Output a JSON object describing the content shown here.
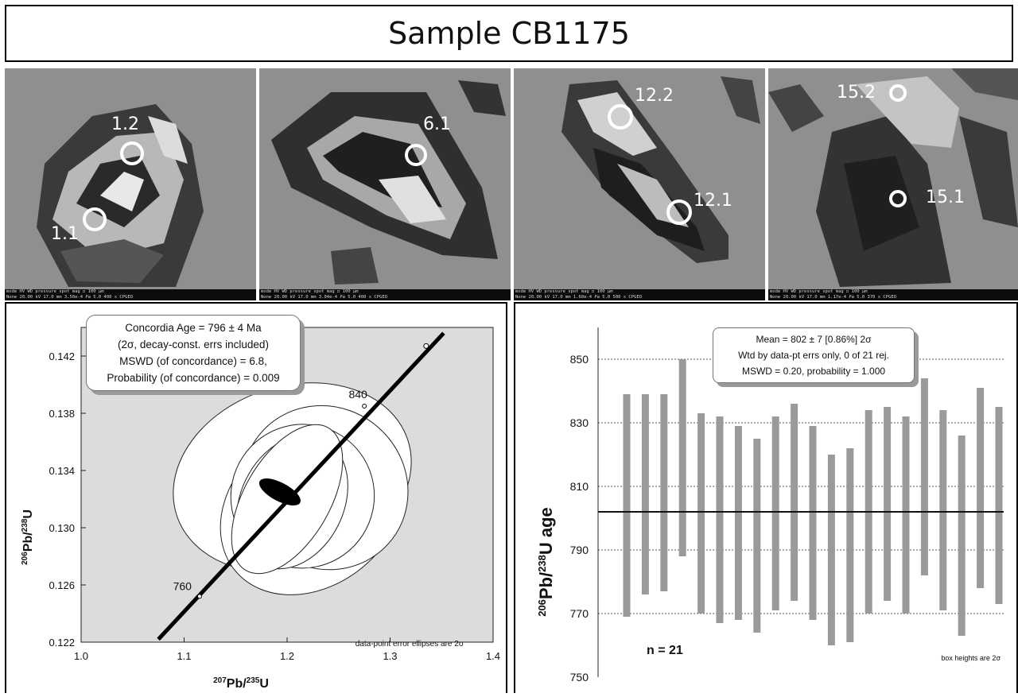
{
  "title": "Sample CB1175",
  "sem_images": [
    {
      "spots": [
        {
          "label": "1.2"
        },
        {
          "label": "1.1"
        }
      ],
      "bar_line1": "mode    HV    WD    pressure  spot mag ◻         100 µm",
      "bar_line2": "None 20.00 kV 17.0 mm 3.50e-4 Pa 5.0   400 x      CPGEO"
    },
    {
      "spots": [
        {
          "label": "6.1"
        }
      ],
      "bar_line1": "mode    HV    WD    pressure  spot mag ◻         100 µm",
      "bar_line2": "None 20.00 kV 17.0 mm 3.04e-4 Pa 5.0   400 x      CPGEO"
    },
    {
      "spots": [
        {
          "label": "12.2"
        },
        {
          "label": "12.1"
        }
      ],
      "bar_line1": "mode    HV    WD    pressure  spot mag ◻         100 µm",
      "bar_line2": "None 20.00 kV 17.0 mm 1.60e-4 Pa 5.0   500 x      CPGEO"
    },
    {
      "spots": [
        {
          "label": "15.2"
        },
        {
          "label": "15.1"
        }
      ],
      "bar_line1": "mode    HV    WD    pressure  spot mag ◻         100 µm",
      "bar_line2": "None 20.00 kV 17.0 mm 1.17e-4 Pa 5.0   370 x      CPGEO"
    }
  ],
  "concordia": {
    "legend": [
      "Concordia Age = 796 ± 4 Ma",
      "(2σ, decay-const. errs included)",
      "MSWD (of concordance) = 6.8,",
      "Probability (of concordance) = 0.009"
    ],
    "footnote": "data-point error ellipses are 2σ",
    "ylabel_pre": "206",
    "ylabel_mid": "Pb/",
    "ylabel_sup2": "238",
    "ylabel_post": "U",
    "xlabel_pre": "207",
    "xlabel_mid": "Pb/",
    "xlabel_sup2": "235",
    "xlabel_post": "U"
  },
  "weighted_mean": {
    "legend": [
      "Mean = 802 ± 7  [0.86%]  2σ",
      "Wtd by data-pt errs only, 0 of 21 rej.",
      "MSWD = 0.20, probability = 1.000"
    ],
    "n_label": "n = 21",
    "footnote": "box heights are 2σ",
    "ylabel_pre": "206",
    "ylabel_mid": "Pb/",
    "ylabel_sup2": "238",
    "ylabel_post": "U age"
  },
  "chart_data": [
    {
      "type": "scatter",
      "subtype": "concordia",
      "xlim": [
        1.0,
        1.4
      ],
      "ylim": [
        0.122,
        0.144
      ],
      "xticks": [
        1.0,
        1.1,
        1.2,
        1.3,
        1.4
      ],
      "yticks": [
        0.122,
        0.126,
        0.13,
        0.134,
        0.138,
        0.142
      ],
      "ytick_labels": [
        "0.122",
        "0.126",
        "0.130",
        "0.134",
        "0.138",
        "0.142"
      ],
      "xtick_labels": [
        "1.0",
        "1.1",
        "1.2",
        "1.3",
        "1.4"
      ],
      "concordia_curve": [
        [
          1.075,
          0.1222
        ],
        [
          1.352,
          0.1436
        ]
      ],
      "age_markers": [
        {
          "label": "760",
          "x": 1.115,
          "y": 0.1252
        },
        {
          "label": "840",
          "x": 1.275,
          "y": 0.1385
        }
      ],
      "concordia_age_ellipse": {
        "cx": 1.193,
        "cy": 0.1325,
        "rx": 0.009,
        "ry": 0.0016,
        "angle_deg": -62
      },
      "ellipses": [
        {
          "cx": 1.205,
          "cy": 0.1335,
          "rx": 0.118,
          "ry": 0.0064,
          "angle_deg": -18
        },
        {
          "cx": 1.225,
          "cy": 0.1315,
          "rx": 0.098,
          "ry": 0.0055,
          "angle_deg": -40
        },
        {
          "cx": 1.237,
          "cy": 0.1328,
          "rx": 0.078,
          "ry": 0.0059,
          "angle_deg": -50
        },
        {
          "cx": 1.215,
          "cy": 0.1322,
          "rx": 0.07,
          "ry": 0.005,
          "angle_deg": -57
        },
        {
          "cx": 1.205,
          "cy": 0.1318,
          "rx": 0.068,
          "ry": 0.0036,
          "angle_deg": -64
        },
        {
          "cx": 1.2,
          "cy": 0.132,
          "rx": 0.08,
          "ry": 0.003,
          "angle_deg": -60
        }
      ]
    },
    {
      "type": "bar",
      "subtype": "weighted-mean",
      "ylim": [
        750,
        860
      ],
      "yticks": [
        750,
        770,
        790,
        810,
        830,
        850
      ],
      "ytick_labels": [
        "750",
        "770",
        "790",
        "810",
        "830",
        "850"
      ],
      "gridlines": [
        770,
        790,
        810,
        830,
        850
      ],
      "mean": 802,
      "bars": [
        {
          "low": 769,
          "high": 839
        },
        {
          "low": 776,
          "high": 839
        },
        {
          "low": 777,
          "high": 839
        },
        {
          "low": 788,
          "high": 850
        },
        {
          "low": 770,
          "high": 833
        },
        {
          "low": 767,
          "high": 832
        },
        {
          "low": 768,
          "high": 829
        },
        {
          "low": 764,
          "high": 825
        },
        {
          "low": 771,
          "high": 832
        },
        {
          "low": 774,
          "high": 836
        },
        {
          "low": 768,
          "high": 829
        },
        {
          "low": 760,
          "high": 820
        },
        {
          "low": 761,
          "high": 822
        },
        {
          "low": 770,
          "high": 834
        },
        {
          "low": 774,
          "high": 835
        },
        {
          "low": 770,
          "high": 832
        },
        {
          "low": 782,
          "high": 844
        },
        {
          "low": 771,
          "high": 834
        },
        {
          "low": 763,
          "high": 826
        },
        {
          "low": 778,
          "high": 841
        },
        {
          "low": 773,
          "high": 835
        }
      ]
    }
  ]
}
